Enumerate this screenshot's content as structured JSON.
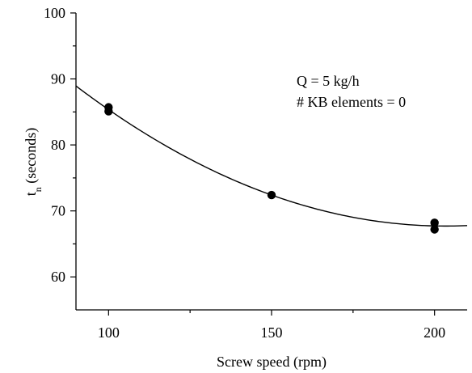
{
  "chart_data": {
    "type": "scatter",
    "title": "",
    "xlabel": "Screw speed (rpm)",
    "ylabel": {
      "main": "t",
      "subscript": "n",
      "suffix": " (seconds)"
    },
    "xlim": [
      90,
      210
    ],
    "ylim": [
      55,
      100
    ],
    "x_major_ticks": [
      100,
      150,
      200
    ],
    "x_minor_ticks": [
      125,
      175
    ],
    "y_major_ticks": [
      60,
      70,
      80,
      90,
      100
    ],
    "y_minor_ticks": [
      65,
      75,
      85,
      95
    ],
    "x_tick_labels": [
      "100",
      "150",
      "200"
    ],
    "y_tick_labels": [
      "60",
      "70",
      "80",
      "90",
      "100"
    ],
    "grid": false,
    "annotations": [
      "Q = 5 kg/h",
      "# KB elements = 0"
    ],
    "series": [
      {
        "points": [
          {
            "x": 100,
            "y": 85.7
          },
          {
            "x": 100,
            "y": 85.1
          },
          {
            "x": 150,
            "y": 72.4
          },
          {
            "x": 200,
            "y": 68.2
          },
          {
            "x": 200,
            "y": 67.2
          }
        ]
      }
    ],
    "fit_curve": {
      "type": "quadratic",
      "points": [
        {
          "x": 90,
          "y": 88.9
        },
        {
          "x": 100,
          "y": 85.4
        },
        {
          "x": 150,
          "y": 72.4
        },
        {
          "x": 200,
          "y": 67.7
        },
        {
          "x": 210,
          "y": 67.8
        }
      ]
    }
  }
}
